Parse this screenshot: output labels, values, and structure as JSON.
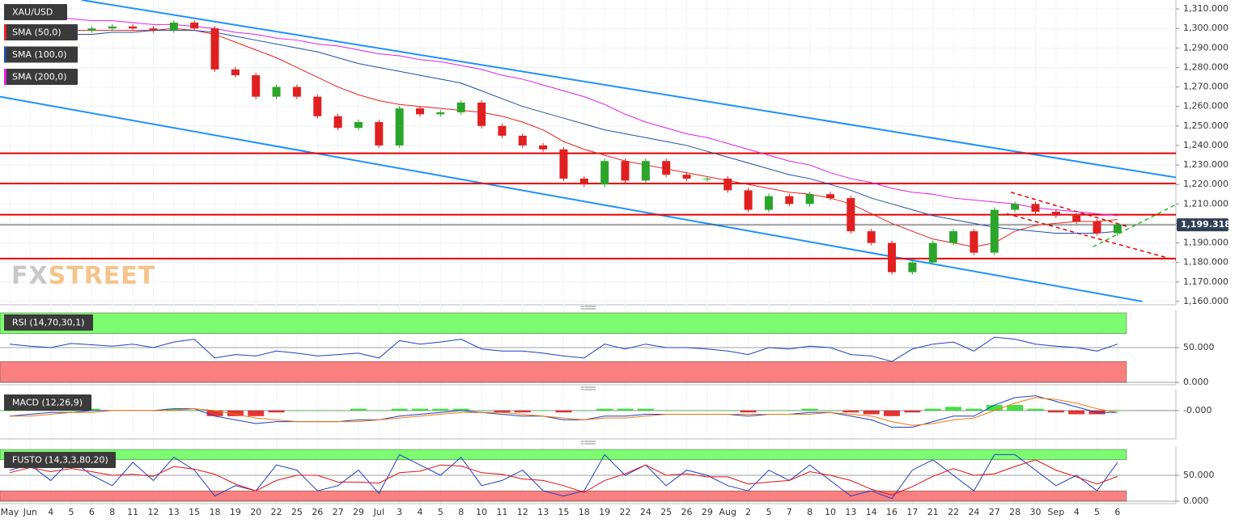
{
  "chart_data": [
    {
      "type": "candlestick",
      "name": "XAU/USD",
      "categories": [
        "May",
        "Jun",
        "4",
        "5",
        "6",
        "8",
        "11",
        "12",
        "13",
        "15",
        "18",
        "19",
        "20",
        "22",
        "25",
        "26",
        "27",
        "29",
        "Jul",
        "3",
        "4",
        "5",
        "8",
        "10",
        "11",
        "12",
        "13",
        "15",
        "18",
        "19",
        "22",
        "24",
        "25",
        "26",
        "29",
        "Aug",
        "2",
        "5",
        "7",
        "8",
        "10",
        "13",
        "14",
        "16",
        "17",
        "21",
        "22",
        "24",
        "27",
        "28",
        "30",
        "Sep",
        "4",
        "5",
        "6"
      ],
      "close": [
        1300,
        1298,
        1296,
        1299,
        1300,
        1301,
        1300,
        1299,
        1303,
        1300,
        1279,
        1276,
        1265,
        1270,
        1265,
        1255,
        1249,
        1252,
        1240,
        1259,
        1256,
        1257,
        1262,
        1250,
        1245,
        1240,
        1238,
        1223,
        1220,
        1232,
        1222,
        1232,
        1225,
        1223,
        1223,
        1217,
        1207,
        1214,
        1210,
        1215,
        1213,
        1196,
        1190,
        1175,
        1180,
        1190,
        1196,
        1185,
        1207,
        1210,
        1206,
        1204,
        1201,
        1195,
        1199.318
      ],
      "up_color": "#2aa52a",
      "down_color": "#e02020",
      "series": [
        {
          "name": "SMA (50,0)",
          "color": "#e8231c",
          "values": [
            1298,
            1298,
            1298,
            1299,
            1299,
            1299,
            1299,
            1299,
            1300,
            1299,
            1297,
            1293,
            1289,
            1285,
            1280,
            1275,
            1270,
            1266,
            1263,
            1261,
            1260,
            1259,
            1258,
            1257,
            1255,
            1252,
            1248,
            1242,
            1238,
            1235,
            1232,
            1230,
            1228,
            1226,
            1224,
            1222,
            1220,
            1218,
            1216,
            1215,
            1213,
            1210,
            1205,
            1200,
            1196,
            1192,
            1190,
            1188,
            1190,
            1196,
            1199,
            1200,
            1201,
            1201,
            1202
          ]
        },
        {
          "name": "SMA (100,0)",
          "color": "#1f4fa8",
          "values": [
            1295,
            1296,
            1296,
            1297,
            1297,
            1298,
            1298,
            1299,
            1299,
            1299,
            1298,
            1296,
            1294,
            1292,
            1290,
            1288,
            1285,
            1282,
            1280,
            1278,
            1276,
            1274,
            1272,
            1268,
            1264,
            1260,
            1257,
            1254,
            1251,
            1248,
            1246,
            1244,
            1242,
            1240,
            1237,
            1234,
            1231,
            1228,
            1225,
            1223,
            1220,
            1217,
            1213,
            1210,
            1207,
            1204,
            1202,
            1200,
            1198,
            1197,
            1196,
            1195,
            1195,
            1195,
            1196
          ]
        },
        {
          "name": "SMA (200,0)",
          "color": "#e020e0",
          "values": [
            1308,
            1307,
            1306,
            1305,
            1304,
            1304,
            1303,
            1302,
            1302,
            1301,
            1300,
            1298,
            1297,
            1295,
            1294,
            1292,
            1291,
            1289,
            1287,
            1286,
            1284,
            1283,
            1281,
            1279,
            1276,
            1274,
            1271,
            1268,
            1265,
            1261,
            1256,
            1252,
            1249,
            1246,
            1244,
            1241,
            1238,
            1235,
            1232,
            1230,
            1226,
            1223,
            1221,
            1218,
            1216,
            1215,
            1213,
            1212,
            1211,
            1210,
            1208,
            1207,
            1206,
            1205,
            1204
          ]
        }
      ],
      "ylim": [
        1158.3,
        1314.6
      ],
      "yticks": [
        {
          "value": 1160,
          "label": "1,160.000"
        },
        {
          "value": 1170,
          "label": "1,170.000"
        },
        {
          "value": 1180,
          "label": "1,180.000"
        },
        {
          "value": 1190,
          "label": "1,190.000"
        },
        {
          "value": 1200,
          "label": "1,200.000"
        },
        {
          "value": 1210,
          "label": "1,210.000"
        },
        {
          "value": 1220,
          "label": "1,220.000"
        },
        {
          "value": 1230,
          "label": "1,230.000"
        },
        {
          "value": 1240,
          "label": "1,240.000"
        },
        {
          "value": 1250,
          "label": "1,250.000"
        },
        {
          "value": 1260,
          "label": "1,260.000"
        },
        {
          "value": 1270,
          "label": "1,270.000"
        },
        {
          "value": 1280,
          "label": "1,280.000"
        },
        {
          "value": 1290,
          "label": "1,290.000"
        },
        {
          "value": 1300,
          "label": "1,300.000"
        },
        {
          "value": 1310,
          "label": "1,310.000"
        }
      ],
      "grid": true,
      "last_price": {
        "value": 1199.318,
        "label": "1,199.318"
      },
      "horizontal_lines": [
        {
          "value": 1236,
          "color": "#e60000"
        },
        {
          "value": 1220.5,
          "color": "#e60000"
        },
        {
          "value": 1204.5,
          "color": "#e60000"
        },
        {
          "value": 1182,
          "color": "#e60000"
        }
      ],
      "trendlines": [
        {
          "x": [
            -0.47,
            55.2
          ],
          "y": [
            1265,
            1160
          ],
          "color": "#1e90ff",
          "dashed": false
        },
        {
          "x": [
            3.5,
            56.9
          ],
          "y": [
            1314.6,
            1223.5
          ],
          "color": "#1e90ff",
          "dashed": false
        },
        {
          "x": [
            48.8,
            54.6
          ],
          "y": [
            1216,
            1198
          ],
          "color": "#e60000",
          "dashed": true
        },
        {
          "x": [
            48.6,
            56.9
          ],
          "y": [
            1205,
            1181
          ],
          "color": "#e60000",
          "dashed": true
        },
        {
          "x": [
            52.8,
            56.9
          ],
          "y": [
            1188,
            1210
          ],
          "color": "#22c022",
          "dashed": true
        }
      ],
      "watermark": [
        "FX",
        "STREET"
      ]
    },
    {
      "type": "line",
      "name": "RSI (14,70,30,1)",
      "series": [
        {
          "color": "#1f3fc0",
          "values": [
            55,
            52,
            50,
            56,
            54,
            52,
            55,
            50,
            58,
            62,
            35,
            40,
            38,
            45,
            42,
            38,
            40,
            42,
            35,
            60,
            55,
            58,
            62,
            48,
            45,
            45,
            42,
            38,
            35,
            55,
            48,
            55,
            50,
            50,
            48,
            45,
            40,
            50,
            48,
            52,
            50,
            40,
            38,
            30,
            48,
            55,
            58,
            45,
            65,
            62,
            55,
            52,
            50,
            45,
            55
          ]
        }
      ],
      "ylim": [
        0,
        100
      ],
      "yticks": [
        {
          "value": 0,
          "label": "0.000"
        },
        {
          "value": 50,
          "label": "50.000"
        }
      ],
      "bands": [
        {
          "from": 70,
          "to": 100,
          "color": "#7cfc70"
        },
        {
          "from": 0,
          "to": 30,
          "color": "#fa8080"
        }
      ]
    },
    {
      "type": "macd",
      "name": "MACD (12,26,9)",
      "series": [
        {
          "color": "#1f3fc0",
          "values": [
            -3,
            -2,
            -1,
            -1,
            0,
            0,
            0,
            0,
            1,
            1,
            -3,
            -5,
            -7,
            -6,
            -6,
            -6,
            -6,
            -5,
            -5,
            -3,
            -2,
            -1,
            0,
            -1,
            -2,
            -3,
            -3,
            -5,
            -5,
            -3,
            -3,
            -2,
            -2,
            -2,
            -2,
            -2,
            -3,
            -2,
            -2,
            -1,
            -1,
            -3,
            -5,
            -9,
            -9,
            -6,
            -3,
            -3,
            3,
            7,
            8,
            5,
            2,
            -1,
            -1
          ]
        },
        {
          "color": "#f07810",
          "values": [
            -3,
            -3,
            -2,
            -1,
            -1,
            0,
            0,
            0,
            0,
            1,
            0,
            -2,
            -4,
            -5,
            -6,
            -6,
            -6,
            -6,
            -5,
            -4,
            -3,
            -2,
            -1,
            -1,
            -1,
            -2,
            -3,
            -4,
            -5,
            -4,
            -4,
            -3,
            -2,
            -2,
            -2,
            -2,
            -2,
            -2,
            -2,
            -2,
            -1,
            -2,
            -3,
            -6,
            -8,
            -7,
            -5,
            -4,
            0,
            4,
            7,
            6,
            4,
            1,
            -1
          ]
        }
      ],
      "histogram": [
        0,
        1,
        1,
        0,
        1,
        0,
        0,
        0,
        1,
        0,
        -3,
        -3,
        -3,
        -1,
        0,
        0,
        0,
        1,
        0,
        1,
        1,
        1,
        1,
        0,
        -1,
        -1,
        0,
        -1,
        0,
        1,
        1,
        1,
        0,
        0,
        0,
        0,
        -1,
        0,
        0,
        1,
        0,
        -1,
        -2,
        -3,
        -1,
        1,
        2,
        1,
        3,
        3,
        1,
        -1,
        -2,
        -2,
        0
      ],
      "hist_up_color": "#22dd22",
      "hist_down_color": "#e01010",
      "ylim": [
        -14,
        10
      ],
      "yticks": [
        {
          "value": 0,
          "label": "-0.000"
        }
      ]
    },
    {
      "type": "line",
      "name": "FUSTO (14,3,3,80,20)",
      "series": [
        {
          "color": "#1f3fc0",
          "values": [
            60,
            70,
            40,
            80,
            50,
            30,
            75,
            40,
            85,
            60,
            10,
            30,
            20,
            70,
            60,
            20,
            30,
            60,
            15,
            90,
            70,
            50,
            85,
            30,
            40,
            60,
            20,
            10,
            20,
            90,
            50,
            70,
            30,
            60,
            50,
            30,
            20,
            60,
            40,
            70,
            40,
            10,
            20,
            5,
            60,
            80,
            50,
            20,
            90,
            90,
            60,
            30,
            50,
            20,
            75
          ]
        },
        {
          "color": "#e01010",
          "values": [
            55,
            65,
            57,
            63,
            57,
            50,
            52,
            48,
            67,
            62,
            52,
            33,
            20,
            40,
            50,
            50,
            37,
            37,
            35,
            55,
            58,
            70,
            68,
            55,
            52,
            43,
            40,
            30,
            17,
            40,
            53,
            70,
            50,
            53,
            47,
            47,
            33,
            37,
            40,
            57,
            50,
            40,
            23,
            12,
            28,
            48,
            63,
            50,
            53,
            67,
            80,
            60,
            47,
            33,
            48
          ]
        }
      ],
      "ylim": [
        0,
        100
      ],
      "yticks": [
        {
          "value": 0,
          "label": "0.000"
        },
        {
          "value": 50,
          "label": "50.000"
        }
      ],
      "bands": [
        {
          "from": 80,
          "to": 100,
          "color": "#7cfc70"
        },
        {
          "from": 0,
          "to": 20,
          "color": "#fa8080"
        }
      ]
    }
  ]
}
